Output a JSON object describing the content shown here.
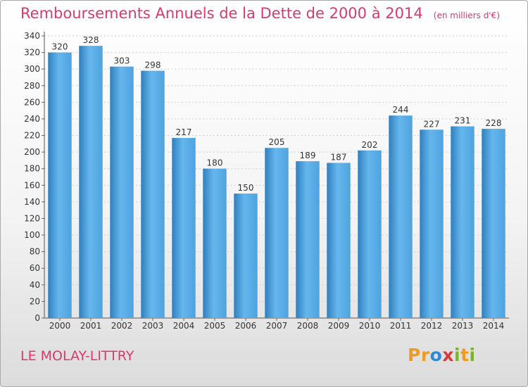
{
  "chart_data": {
    "type": "bar",
    "title": "Remboursements Annuels de la Dette de 2000 à 2014",
    "unit_label": "(en milliers d'€)",
    "categories": [
      "2000",
      "2001",
      "2002",
      "2003",
      "2004",
      "2005",
      "2006",
      "2007",
      "2008",
      "2009",
      "2010",
      "2011",
      "2012",
      "2013",
      "2014"
    ],
    "values": [
      320,
      328,
      303,
      298,
      217,
      180,
      150,
      205,
      189,
      187,
      202,
      244,
      227,
      231,
      228
    ],
    "value_labels": [
      "320",
      "328",
      "303",
      "298",
      "217",
      "180",
      "150",
      "205",
      "189",
      "187",
      "202",
      "244",
      "227",
      "231",
      "228"
    ],
    "yticks": [
      "0",
      "20",
      "40",
      "60",
      "80",
      "100",
      "120",
      "140",
      "160",
      "180",
      "200",
      "220",
      "240",
      "260",
      "280",
      "300",
      "320",
      "340"
    ],
    "ylim": [
      0,
      340
    ],
    "ystep": 20,
    "grid": true,
    "legend": "none",
    "bar_color": "#4ea3df",
    "bar_color_light": "#65b6ec",
    "bar_color_dark": "#2f7fc0"
  },
  "footer": {
    "commune": "LE MOLAY-LITTRY",
    "brand_letters": [
      {
        "char": "P",
        "color": "#f09a1f"
      },
      {
        "char": "r",
        "color": "#f09a1f"
      },
      {
        "char": "o",
        "color": "#2f8ad2"
      },
      {
        "char": "x",
        "color": "#d83a3a"
      },
      {
        "char": "i",
        "color": "#7ab526"
      },
      {
        "char": "t",
        "color": "#f09a1f"
      },
      {
        "char": "i",
        "color": "#7ab526"
      }
    ]
  }
}
